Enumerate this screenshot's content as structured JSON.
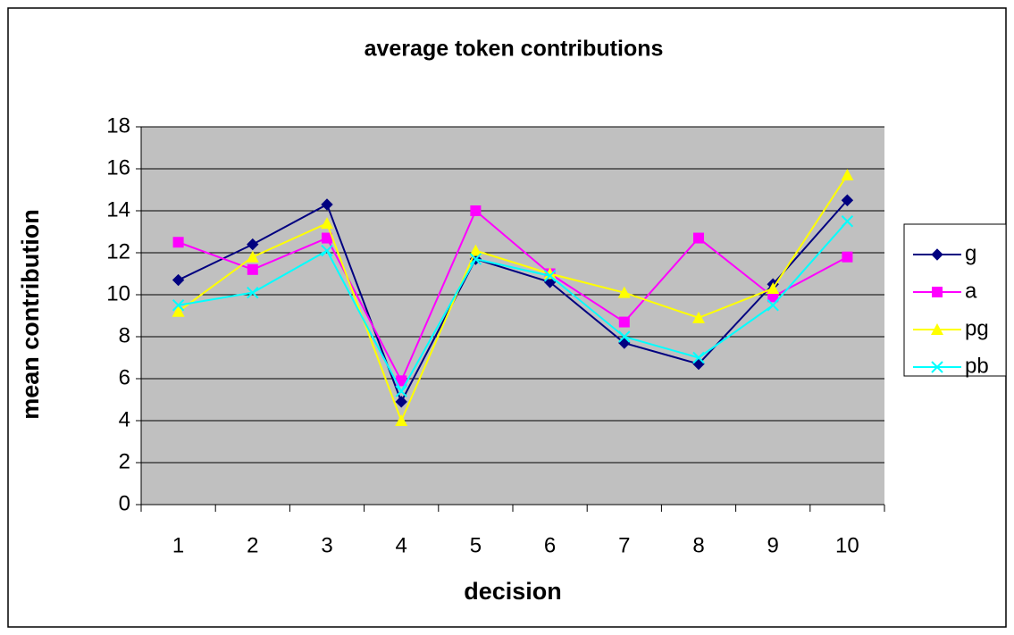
{
  "chart_data": {
    "type": "line",
    "title": "average token contributions",
    "x_label": "decision",
    "y_label": "mean contribution",
    "categories": [
      "1",
      "2",
      "3",
      "4",
      "5",
      "6",
      "7",
      "8",
      "9",
      "10"
    ],
    "series": [
      {
        "name": "g",
        "color": "#000080",
        "marker": "diamond",
        "values": [
          10.7,
          12.4,
          14.3,
          4.9,
          11.7,
          10.6,
          7.7,
          6.7,
          10.5,
          14.5
        ]
      },
      {
        "name": "a",
        "color": "#ff00ff",
        "marker": "square",
        "values": [
          12.5,
          11.2,
          12.7,
          5.9,
          14.0,
          11.0,
          8.7,
          12.7,
          9.9,
          11.8
        ]
      },
      {
        "name": "pg",
        "color": "#ffff00",
        "marker": "triangle",
        "values": [
          9.2,
          11.8,
          13.4,
          4.0,
          12.1,
          11.0,
          10.1,
          8.9,
          10.3,
          15.7
        ]
      },
      {
        "name": "pb",
        "color": "#00ffff",
        "marker": "x",
        "values": [
          9.5,
          10.1,
          12.1,
          5.4,
          11.7,
          10.9,
          8.0,
          7.0,
          9.5,
          13.5
        ]
      }
    ],
    "ylim": [
      0,
      18
    ],
    "yticks": [
      0,
      2,
      4,
      6,
      8,
      10,
      12,
      14,
      16,
      18
    ],
    "grid": true,
    "legend": "right",
    "plot_background": "#c0c0c0"
  }
}
